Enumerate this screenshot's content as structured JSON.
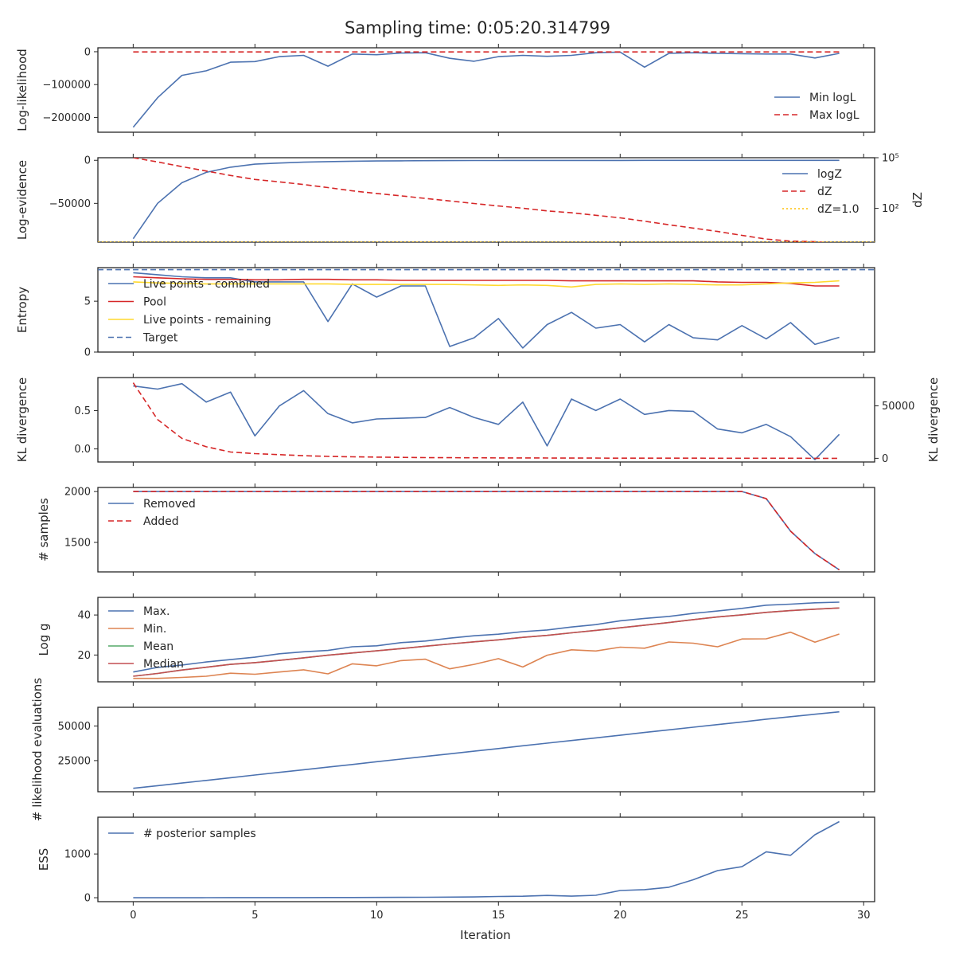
{
  "figure": {
    "title": "Sampling time: 0:05:20.314799",
    "xlabel": "Iteration",
    "xticks": [
      "0",
      "5",
      "10",
      "15",
      "20",
      "25",
      "30"
    ],
    "xlim": [
      -1.45,
      30.45
    ]
  },
  "colors": {
    "blue": "#4c72b0",
    "red": "#d62728",
    "orange": "#dd8452",
    "green": "#55a868",
    "crimson": "#c44e52",
    "gold": "#ffc107",
    "yellow": "#ffd92f",
    "axis": "#262626"
  },
  "chart_data": [
    {
      "type": "line",
      "ylabel": "Log-likelihood",
      "ylim": [
        -245000,
        12000
      ],
      "yticks": [
        {
          "v": 0,
          "label": "0"
        },
        {
          "v": -100000,
          "label": "−100000"
        },
        {
          "v": -200000,
          "label": "−200000"
        }
      ],
      "legend_position": "lower-right",
      "series": [
        {
          "name": "Min logL",
          "color": "#4c72b0",
          "dash": "solid",
          "values": [
            -230000,
            -140000,
            -72000,
            -58000,
            -32000,
            -30000,
            -15000,
            -11000,
            -44000,
            -7000,
            -9000,
            -4000,
            -3000,
            -20000,
            -29000,
            -15000,
            -11000,
            -14000,
            -11000,
            -3000,
            -1000,
            -47000,
            -5000,
            -3000,
            -5000,
            -6000,
            -7000,
            -7000,
            -19000,
            -5000
          ]
        },
        {
          "name": "Max logL",
          "color": "#d62728",
          "dash": "dashed",
          "values": [
            -500,
            -500,
            -500,
            -500,
            -500,
            -500,
            -500,
            -500,
            -500,
            -500,
            -500,
            -500,
            -500,
            -500,
            -500,
            -500,
            -500,
            -500,
            -500,
            -500,
            -500,
            -500,
            -500,
            -500,
            -500,
            -500,
            -500,
            -500,
            -500,
            -500
          ]
        }
      ]
    },
    {
      "type": "line",
      "ylabel": "Log-evidence",
      "ylim": [
        -95000,
        3000
      ],
      "yticks": [
        {
          "v": 0,
          "label": "0"
        },
        {
          "v": -50000,
          "label": "−50000"
        }
      ],
      "y2label": "dZ",
      "y2scale": "log",
      "y2lim_log10": [
        0.0,
        5.0
      ],
      "y2ticks": [
        {
          "v": 5,
          "label": "10⁵"
        },
        {
          "v": 2,
          "label": "10²"
        }
      ],
      "legend_position": "upper-right",
      "series": [
        {
          "name": "logZ",
          "axis": "left",
          "color": "#4c72b0",
          "dash": "solid",
          "values": [
            -91000,
            -50000,
            -26000,
            -14000,
            -8000,
            -4500,
            -3200,
            -2200,
            -1500,
            -1100,
            -800,
            -600,
            -400,
            -300,
            -250,
            -200,
            -180,
            -150,
            -130,
            -110,
            -100,
            -90,
            -80,
            -70,
            -60,
            -50,
            -40,
            -30,
            -20,
            -10
          ]
        },
        {
          "name": "dZ",
          "axis": "right",
          "scale": "log10",
          "color": "#d62728",
          "dash": "dashed",
          "values": [
            5.0,
            4.75,
            4.47,
            4.21,
            3.95,
            3.71,
            3.57,
            3.41,
            3.23,
            3.04,
            2.88,
            2.74,
            2.59,
            2.44,
            2.29,
            2.14,
            2.01,
            1.85,
            1.74,
            1.59,
            1.44,
            1.24,
            1.03,
            0.83,
            0.63,
            0.4,
            0.18,
            0.06,
            0.03,
            -0.12
          ]
        },
        {
          "name": "dZ=1.0",
          "axis": "right",
          "color": "#ffc107",
          "dash": "dotted",
          "values": [
            0,
            0,
            0,
            0,
            0,
            0,
            0,
            0,
            0,
            0,
            0,
            0,
            0,
            0,
            0,
            0,
            0,
            0,
            0,
            0,
            0,
            0,
            0,
            0,
            0,
            0,
            0,
            0,
            0,
            0
          ]
        }
      ]
    },
    {
      "type": "line",
      "ylabel": "Entropy",
      "ylim": [
        0,
        8.3
      ],
      "yticks": [
        {
          "v": 0,
          "label": "0"
        },
        {
          "v": 5,
          "label": "5"
        }
      ],
      "legend_position": "upper-left",
      "series": [
        {
          "name": "Live points - combined",
          "color": "#4c72b0",
          "dash": "solid",
          "values": [
            7.8,
            7.6,
            7.4,
            7.3,
            7.3,
            6.9,
            6.9,
            6.9,
            3.0,
            6.7,
            5.4,
            6.5,
            6.5,
            0.55,
            1.4,
            3.3,
            0.4,
            2.7,
            3.9,
            2.35,
            2.7,
            1.0,
            2.7,
            1.4,
            1.2,
            2.6,
            1.3,
            2.9,
            0.75,
            1.45
          ]
        },
        {
          "name": "Pool",
          "color": "#d62728",
          "dash": "solid",
          "values": [
            7.4,
            7.3,
            7.2,
            7.15,
            7.15,
            7.1,
            7.1,
            7.15,
            7.15,
            7.1,
            7.1,
            7.05,
            7.05,
            7.05,
            7.05,
            7.05,
            7.05,
            7.05,
            7.0,
            7.0,
            7.0,
            7.0,
            7.0,
            7.0,
            6.9,
            6.85,
            6.85,
            6.75,
            6.5,
            6.5
          ]
        },
        {
          "name": "Live points - remaining",
          "color": "#ffd92f",
          "dash": "solid",
          "values": [
            6.9,
            6.8,
            6.75,
            6.7,
            6.7,
            6.7,
            6.7,
            6.7,
            6.7,
            6.65,
            6.65,
            6.65,
            6.65,
            6.65,
            6.6,
            6.55,
            6.6,
            6.55,
            6.4,
            6.65,
            6.7,
            6.65,
            6.7,
            6.65,
            6.6,
            6.6,
            6.7,
            6.8,
            6.85,
            7.0
          ]
        },
        {
          "name": "Target",
          "color": "#4c72b0",
          "dash": "dashed",
          "values": [
            8.1,
            8.1,
            8.1,
            8.1,
            8.1,
            8.1,
            8.1,
            8.1,
            8.1,
            8.1,
            8.1,
            8.1,
            8.1,
            8.1,
            8.1,
            8.1,
            8.1,
            8.1,
            8.1,
            8.1,
            8.1,
            8.1,
            8.1,
            8.1,
            8.1,
            8.1,
            8.1,
            8.1,
            8.1,
            8.1
          ]
        }
      ]
    },
    {
      "type": "line",
      "ylabel": "KL divergence",
      "ylim": [
        -0.17,
        0.93
      ],
      "yticks": [
        {
          "v": 0.5,
          "label": "0.5"
        },
        {
          "v": 0.0,
          "label": "0.0"
        }
      ],
      "y2label": "KL divergence",
      "y2lim": [
        -3500,
        77000
      ],
      "y2ticks": [
        {
          "v": 50000,
          "label": "50000"
        },
        {
          "v": 0,
          "label": "0"
        }
      ],
      "series": [
        {
          "name": "",
          "axis": "left",
          "color": "#4c72b0",
          "dash": "solid",
          "values": [
            0.82,
            0.78,
            0.85,
            0.61,
            0.74,
            0.17,
            0.56,
            0.76,
            0.46,
            0.34,
            0.39,
            0.4,
            0.41,
            0.54,
            0.41,
            0.32,
            0.61,
            0.04,
            0.65,
            0.5,
            0.65,
            0.45,
            0.5,
            0.49,
            0.26,
            0.21,
            0.32,
            0.16,
            -0.14,
            0.19
          ]
        },
        {
          "name": "",
          "axis": "right",
          "color": "#d62728",
          "dash": "dashed",
          "values": [
            72000,
            37000,
            19000,
            11000,
            6000,
            4500,
            3500,
            2500,
            1800,
            1400,
            1100,
            900,
            700,
            600,
            500,
            400,
            350,
            300,
            250,
            200,
            180,
            160,
            140,
            120,
            100,
            80,
            60,
            40,
            20,
            10
          ]
        }
      ]
    },
    {
      "type": "line",
      "ylabel": "# samples",
      "ylim": [
        1210,
        2040
      ],
      "yticks": [
        {
          "v": 2000,
          "label": "2000"
        },
        {
          "v": 1500,
          "label": "1500"
        }
      ],
      "legend_position": "upper-left",
      "series": [
        {
          "name": "Removed",
          "color": "#4c72b0",
          "dash": "solid",
          "values": [
            2000,
            2000,
            2000,
            2000,
            2000,
            2000,
            2000,
            2000,
            2000,
            2000,
            2000,
            2000,
            2000,
            2000,
            2000,
            2000,
            2000,
            2000,
            2000,
            2000,
            2000,
            2000,
            2000,
            2000,
            2000,
            2000,
            1930,
            1610,
            1390,
            1230
          ]
        },
        {
          "name": "Added",
          "color": "#d62728",
          "dash": "dashed",
          "values": [
            2000,
            2000,
            2000,
            2000,
            2000,
            2000,
            2000,
            2000,
            2000,
            2000,
            2000,
            2000,
            2000,
            2000,
            2000,
            2000,
            2000,
            2000,
            2000,
            2000,
            2000,
            2000,
            2000,
            2000,
            2000,
            2000,
            1930,
            1610,
            1390,
            1230
          ]
        }
      ]
    },
    {
      "type": "line",
      "ylabel": "Log g",
      "ylim": [
        6.6,
        48.8
      ],
      "yticks": [
        {
          "v": 40,
          "label": "40"
        },
        {
          "v": 20,
          "label": "20"
        }
      ],
      "legend_position": "upper-left",
      "series": [
        {
          "name": "Max.",
          "color": "#4c72b0",
          "dash": "solid",
          "values": [
            11.5,
            13.8,
            15.0,
            16.5,
            17.7,
            18.9,
            20.6,
            21.6,
            22.3,
            24.1,
            24.6,
            26.2,
            27.0,
            28.4,
            29.6,
            30.4,
            31.7,
            32.5,
            34.0,
            35.2,
            37.1,
            38.3,
            39.3,
            40.8,
            42.0,
            43.3,
            44.9,
            45.4,
            46.1,
            46.4
          ]
        },
        {
          "name": "Min.",
          "color": "#dd8452",
          "dash": "solid",
          "values": [
            8.3,
            8.3,
            8.8,
            9.4,
            10.9,
            10.4,
            11.5,
            12.6,
            10.6,
            15.6,
            14.6,
            17.2,
            17.9,
            13.1,
            15.3,
            18.2,
            14.0,
            19.9,
            22.6,
            22.0,
            23.9,
            23.4,
            26.5,
            25.9,
            24.1,
            28.0,
            28.1,
            31.4,
            26.4,
            30.5
          ]
        },
        {
          "name": "Mean",
          "color": "#55a868",
          "dash": "solid",
          "values": [
            9.4,
            10.8,
            12.5,
            13.9,
            15.3,
            16.2,
            17.3,
            18.6,
            19.9,
            21.0,
            22.1,
            23.2,
            24.4,
            25.5,
            26.6,
            27.6,
            28.8,
            29.8,
            31.1,
            32.3,
            33.6,
            34.9,
            36.2,
            37.7,
            39.0,
            40.1,
            41.3,
            42.2,
            42.9,
            43.5
          ]
        },
        {
          "name": "Median",
          "color": "#c44e52",
          "dash": "solid",
          "values": [
            9.4,
            10.8,
            12.5,
            13.9,
            15.3,
            16.2,
            17.3,
            18.6,
            19.9,
            21.0,
            22.1,
            23.2,
            24.4,
            25.5,
            26.6,
            27.6,
            28.8,
            29.8,
            31.1,
            32.3,
            33.6,
            34.9,
            36.2,
            37.7,
            39.0,
            40.1,
            41.3,
            42.2,
            42.9,
            43.5
          ]
        }
      ]
    },
    {
      "type": "line",
      "ylabel": "# likelihood evaluations",
      "ylim": [
        2500,
        63500
      ],
      "yticks": [
        {
          "v": 50000,
          "label": "50000"
        },
        {
          "v": 25000,
          "label": "25000"
        }
      ],
      "series": [
        {
          "name": "",
          "color": "#4c72b0",
          "dash": "solid",
          "values": [
            5000,
            6900,
            8800,
            10700,
            12600,
            14600,
            16500,
            18400,
            20300,
            22200,
            24200,
            26100,
            28000,
            29900,
            31800,
            33700,
            35700,
            37600,
            39500,
            41400,
            43300,
            45300,
            47200,
            49100,
            51000,
            52900,
            54900,
            56700,
            58500,
            60200
          ]
        }
      ]
    },
    {
      "type": "line",
      "ylabel": "ESS",
      "ylim": [
        -90,
        1840
      ],
      "yticks": [
        {
          "v": 1000,
          "label": "1000"
        },
        {
          "v": 0,
          "label": "0"
        }
      ],
      "legend_position": "upper-left",
      "series": [
        {
          "name": "# posterior samples",
          "color": "#4c72b0",
          "dash": "solid",
          "values": [
            0,
            0,
            0,
            1,
            2,
            2,
            3,
            3,
            4,
            4,
            6,
            8,
            10,
            13,
            17,
            28,
            33,
            52,
            35,
            56,
            165,
            185,
            240,
            410,
            620,
            710,
            1050,
            970,
            1440,
            1740
          ]
        }
      ]
    }
  ]
}
